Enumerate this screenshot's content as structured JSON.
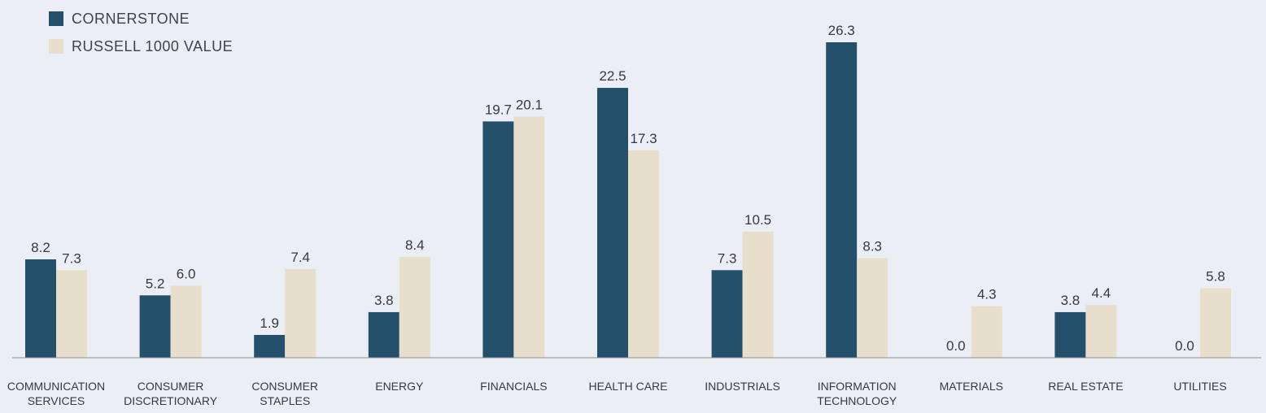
{
  "legend": {
    "series_0": "CORNERSTONE",
    "series_1": "RUSSELL 1000 VALUE"
  },
  "colors": {
    "series_0": "#25506b",
    "series_1": "#e7dfcc",
    "axis": "#8a8f94",
    "background": "#ebeff5"
  },
  "chart_data": {
    "type": "bar",
    "categories": [
      [
        "COMMUNICATION",
        "SERVICES"
      ],
      [
        "CONSUMER",
        "DISCRETIONARY"
      ],
      [
        "CONSUMER",
        "STAPLES"
      ],
      [
        "ENERGY"
      ],
      [
        "FINANCIALS"
      ],
      [
        "HEALTH CARE"
      ],
      [
        "INDUSTRIALS"
      ],
      [
        "INFORMATION",
        "TECHNOLOGY"
      ],
      [
        "MATERIALS"
      ],
      [
        "REAL ESTATE"
      ],
      [
        "UTILITIES"
      ]
    ],
    "series": [
      {
        "name": "CORNERSTONE",
        "values": [
          8.2,
          5.2,
          1.9,
          3.8,
          19.7,
          22.5,
          7.3,
          26.3,
          0.0,
          3.8,
          0.0
        ]
      },
      {
        "name": "RUSSELL 1000 VALUE",
        "values": [
          7.3,
          6.0,
          7.4,
          8.4,
          20.1,
          17.3,
          10.5,
          8.3,
          4.3,
          4.4,
          5.8
        ]
      }
    ],
    "title": "",
    "xlabel": "",
    "ylabel": "",
    "ylim": [
      0,
      26.3
    ],
    "grid": false,
    "legend_position": "top-left"
  }
}
